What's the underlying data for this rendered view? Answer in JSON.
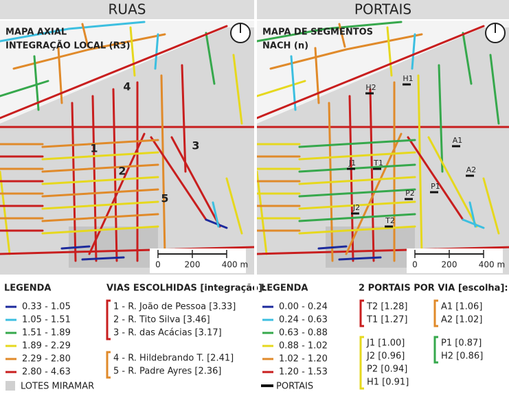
{
  "panels": [
    {
      "title": "RUAS",
      "map_title": [
        "MAPA AXIAL",
        "INTEGRAÇÃO LOCAL (R3)"
      ],
      "map_labels": [
        "1",
        "2",
        "3",
        "4",
        "5"
      ],
      "scale": [
        "0",
        "200",
        "400 m"
      ],
      "legend": {
        "title": "LEGENDA",
        "items": [
          {
            "label": "0.33 - 1.05",
            "color": "#1c2a9c"
          },
          {
            "label": "1.05 - 1.51",
            "color": "#3cbfe0"
          },
          {
            "label": "1.51 - 1.89",
            "color": "#36a84c"
          },
          {
            "label": "1.89 - 2.29",
            "color": "#e6d81e"
          },
          {
            "label": "2.29 - 2.80",
            "color": "#e08a2a"
          },
          {
            "label": "2.80 - 4.63",
            "color": "#c81e1e"
          }
        ],
        "extra": "LOTES MIRAMAR"
      },
      "selection": {
        "title": "VIAS ESCOLHIDAS [integração]:",
        "groups": [
          {
            "color": "#c81e1e",
            "items": [
              "1 - R. João de Pessoa [3.33]",
              "2 - R. Tito Silva [3.46]",
              "3 - R. das Acácias [3.17]"
            ]
          },
          {
            "color": "#e08a2a",
            "items": [
              "4 - R. Hildebrando T. [2.41]",
              "5 - R. Padre Ayres [2.36]"
            ]
          }
        ]
      }
    },
    {
      "title": "PORTAIS",
      "map_title": [
        "MAPA DE SEGMENTOS",
        "NACH (n)"
      ],
      "map_labels": [
        "H2",
        "H1",
        "A1",
        "J1",
        "T1",
        "A2",
        "P1",
        "P2",
        "J2",
        "T2"
      ],
      "scale": [
        "0",
        "200",
        "400 m"
      ],
      "legend": {
        "title": "LEGENDA",
        "items": [
          {
            "label": "0.00 - 0.24",
            "color": "#1c2a9c"
          },
          {
            "label": "0.24 - 0.63",
            "color": "#3cbfe0"
          },
          {
            "label": "0.63 - 0.88",
            "color": "#36a84c"
          },
          {
            "label": "0.88 - 1.02",
            "color": "#e6d81e"
          },
          {
            "label": "1.02 - 1.20",
            "color": "#e08a2a"
          },
          {
            "label": "1.20 - 1.53",
            "color": "#c81e1e"
          }
        ],
        "extra": "PORTAIS"
      },
      "selection": {
        "title": "2 PORTAIS POR VIA [escolha]:",
        "groups": [
          {
            "color": "#c81e1e",
            "items": [
              "T2 [1.28]",
              "T1 [1.27]"
            ]
          },
          {
            "color": "#e08a2a",
            "items": [
              "A1 [1.06]",
              "A2 [1.02]"
            ]
          },
          {
            "color": "#e6d81e",
            "items": [
              "J1 [1.00]",
              "J2 [0.96]",
              "P2 [0.94]",
              "H1 [0.91]"
            ]
          },
          {
            "color": "#36a84c",
            "items": [
              "P1 [0.87]",
              "H2 [0.86]"
            ]
          }
        ]
      }
    }
  ]
}
